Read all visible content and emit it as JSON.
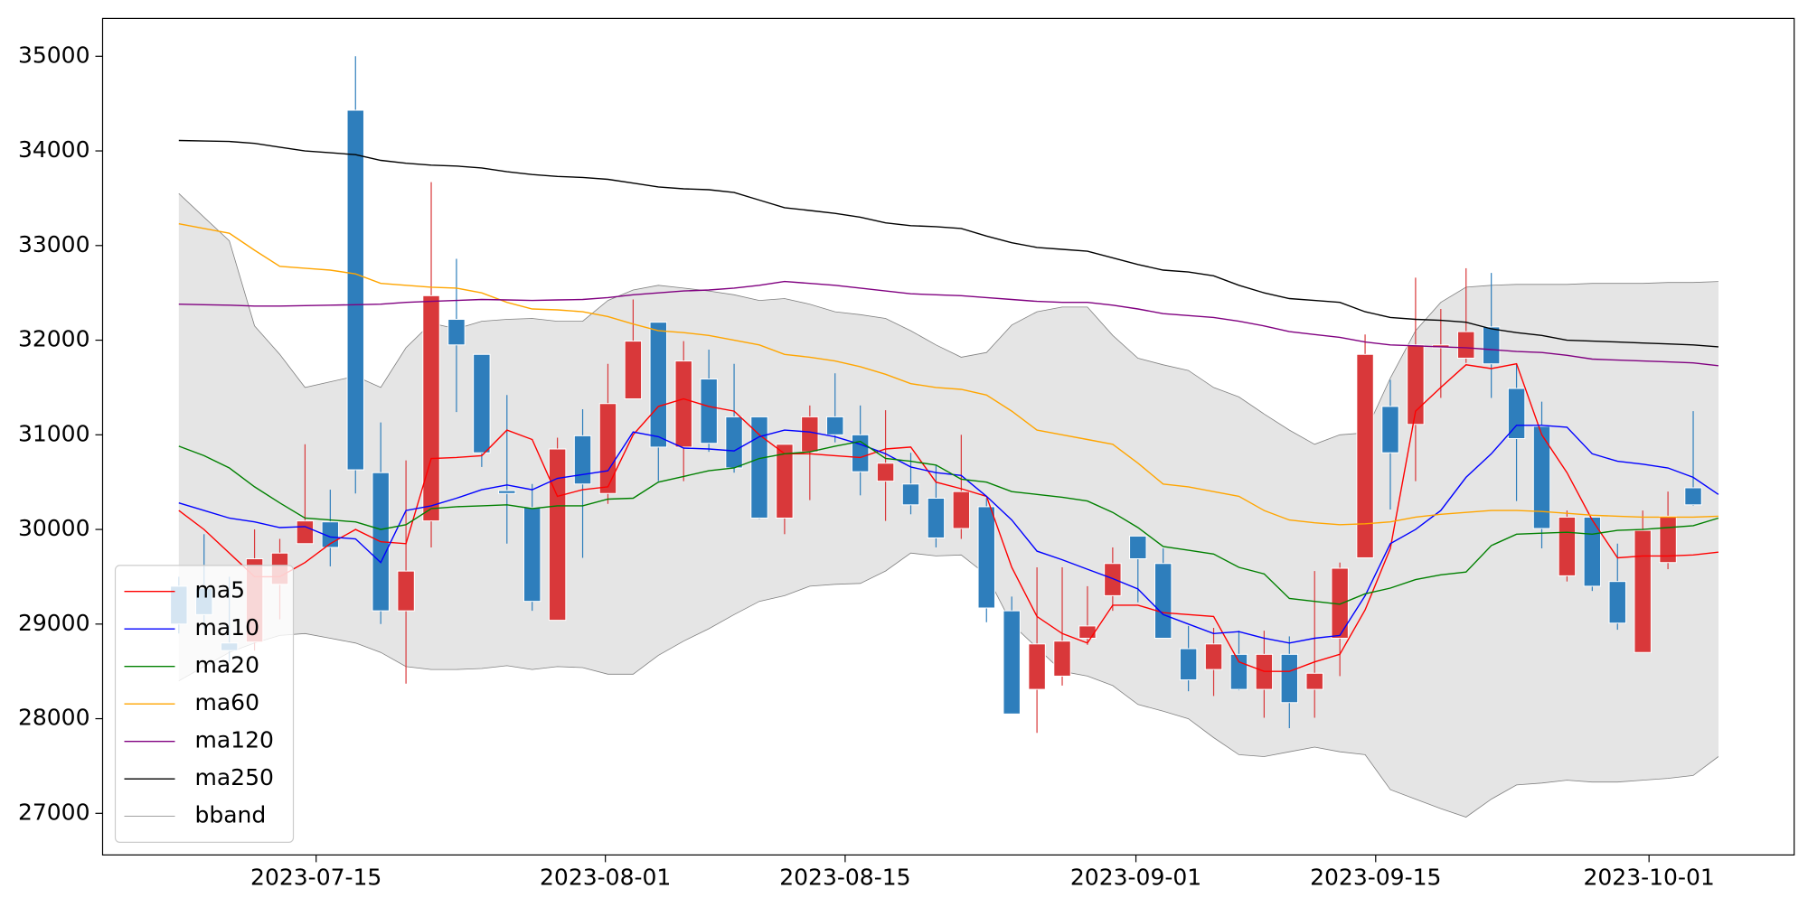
{
  "chart_data": {
    "type": "candlestick",
    "categories": [
      null,
      null,
      null,
      null,
      null,
      null,
      null,
      null,
      null,
      null,
      null,
      null,
      null,
      null,
      null,
      null,
      null,
      null,
      null,
      null,
      null,
      null,
      null,
      null,
      null,
      null,
      null,
      null,
      null,
      null,
      null,
      null,
      null,
      null,
      null,
      null,
      null,
      null,
      null,
      null,
      null,
      null,
      null,
      null,
      null,
      null,
      null,
      null,
      null,
      null,
      null,
      null,
      null,
      null,
      null,
      null,
      null,
      null,
      null,
      null,
      null,
      null
    ],
    "xlim": [
      -3.02,
      64.0
    ],
    "xticks": [
      {
        "value": 5.44,
        "label": "2023-07-15"
      },
      {
        "value": 16.9,
        "label": "2023-08-01"
      },
      {
        "value": 26.4,
        "label": "2023-08-15"
      },
      {
        "value": 37.92,
        "label": "2023-09-01"
      },
      {
        "value": 47.42,
        "label": "2023-09-15"
      },
      {
        "value": 58.25,
        "label": "2023-10-01"
      }
    ],
    "ylim": [
      26560,
      35400
    ],
    "yticks": [
      27000,
      28000,
      29000,
      30000,
      31000,
      32000,
      33000,
      34000,
      35000
    ],
    "up_color": "#d9383a",
    "down_color": "#2e7ebc",
    "open": [
      29400,
      29380,
      28800,
      28810,
      29420,
      29850,
      30080,
      34430,
      30600,
      29140,
      30090,
      32220,
      31850,
      30410,
      30230,
      29040,
      30990,
      30380,
      31380,
      32190,
      30870,
      31590,
      31190,
      31190,
      30120,
      30820,
      31190,
      31000,
      30510,
      30480,
      30330,
      30010,
      30240,
      29140,
      28310,
      28450,
      28850,
      29300,
      29930,
      29640,
      28740,
      28520,
      28680,
      28310,
      28680,
      28310,
      28850,
      29700,
      31300,
      31110,
      31920,
      31810,
      32140,
      31490,
      31090,
      29510,
      30130,
      29450,
      28700,
      29650,
      30440,
      null
    ],
    "high": [
      29500,
      29950,
      29500,
      30000,
      29900,
      30900,
      30420,
      35000,
      31130,
      30730,
      33670,
      32860,
      31850,
      31420,
      30480,
      30970,
      31270,
      31750,
      32430,
      32190,
      31990,
      31900,
      31750,
      31190,
      30900,
      31310,
      31650,
      31310,
      31260,
      30810,
      30680,
      31000,
      30330,
      29290,
      29600,
      29600,
      29400,
      29810,
      29930,
      29800,
      28980,
      28960,
      28930,
      28930,
      28870,
      29560,
      29650,
      32060,
      31580,
      32660,
      32330,
      32760,
      32710,
      31750,
      31350,
      30200,
      30130,
      29850,
      30200,
      30400,
      31250,
      null
    ],
    "low": [
      28900,
      28950,
      28600,
      28720,
      29050,
      29850,
      29610,
      30380,
      29000,
      28370,
      29810,
      31240,
      30660,
      29850,
      29140,
      29040,
      29700,
      30270,
      31380,
      30510,
      30510,
      30820,
      30600,
      30110,
      29950,
      30310,
      30920,
      30360,
      30090,
      30160,
      29810,
      29900,
      29020,
      28050,
      27850,
      28350,
      28780,
      29140,
      29230,
      28850,
      28290,
      28240,
      28300,
      28010,
      27900,
      28010,
      28450,
      29700,
      30210,
      30510,
      31390,
      31760,
      31390,
      30300,
      29800,
      29450,
      29350,
      28940,
      28700,
      29580,
      30250,
      null
    ],
    "close": [
      29000,
      29100,
      28720,
      29690,
      29750,
      30090,
      29810,
      30630,
      29140,
      29560,
      32470,
      31950,
      30810,
      30380,
      29240,
      30850,
      30480,
      31330,
      31990,
      30870,
      31780,
      30910,
      30650,
      30120,
      30900,
      31190,
      31000,
      30610,
      30700,
      30260,
      29910,
      30400,
      29170,
      28050,
      28790,
      28820,
      28980,
      29640,
      29690,
      28850,
      28410,
      28790,
      28310,
      28680,
      28170,
      28480,
      29590,
      31850,
      30810,
      31950,
      31950,
      32090,
      31750,
      30960,
      30010,
      30130,
      29400,
      29010,
      29990,
      30140,
      30260,
      null
    ],
    "series": [
      {
        "name": "ma5",
        "color": "#ff0000",
        "values": [
          30200,
          30000,
          29750,
          29500,
          29500,
          29650,
          29850,
          30000,
          29870,
          29850,
          30750,
          30760,
          30780,
          31050,
          30950,
          30350,
          30420,
          30450,
          31000,
          31300,
          31380,
          31300,
          31250,
          31000,
          30800,
          30800,
          30780,
          30760,
          30850,
          30870,
          30500,
          30430,
          30350,
          29600,
          29080,
          28900,
          28800,
          29200,
          29200,
          29120,
          29100,
          29080,
          28600,
          28500,
          28500,
          28600,
          28680,
          29150,
          29800,
          31250,
          31500,
          31740,
          31700,
          31750,
          31000,
          30600,
          30100,
          29700,
          29720,
          29720,
          29730,
          29760
        ]
      },
      {
        "name": "ma10",
        "color": "#0000ff",
        "values": [
          30280,
          30200,
          30120,
          30080,
          30020,
          30030,
          29920,
          29900,
          29650,
          30200,
          30250,
          30330,
          30420,
          30470,
          30420,
          30540,
          30580,
          30620,
          31030,
          30980,
          30860,
          30850,
          30830,
          30980,
          31050,
          31030,
          30980,
          30900,
          30800,
          30660,
          30600,
          30570,
          30350,
          30100,
          29770,
          29680,
          29580,
          29480,
          29370,
          29100,
          29000,
          28900,
          28920,
          28850,
          28800,
          28850,
          28880,
          29300,
          29850,
          30000,
          30200,
          30550,
          30800,
          31100,
          31100,
          31080,
          30800,
          30720,
          30690,
          30650,
          30550,
          30370
        ]
      },
      {
        "name": "ma20",
        "color": "#008000",
        "values": [
          30880,
          30780,
          30650,
          30450,
          30280,
          30120,
          30100,
          30080,
          30000,
          30050,
          30220,
          30240,
          30250,
          30260,
          30220,
          30250,
          30250,
          30320,
          30330,
          30500,
          30560,
          30620,
          30650,
          30750,
          30800,
          30820,
          30880,
          30930,
          30750,
          30720,
          30680,
          30530,
          30500,
          30400,
          30370,
          30340,
          30300,
          30180,
          30020,
          29820,
          29780,
          29740,
          29600,
          29530,
          29270,
          29240,
          29210,
          29320,
          29380,
          29470,
          29520,
          29550,
          29830,
          29950,
          29960,
          29970,
          29950,
          29990,
          30000,
          30020,
          30040,
          30120
        ]
      },
      {
        "name": "ma60",
        "color": "#ffa500",
        "values": [
          33230,
          33180,
          33130,
          32950,
          32780,
          32760,
          32740,
          32700,
          32600,
          32580,
          32560,
          32550,
          32500,
          32400,
          32330,
          32320,
          32300,
          32250,
          32170,
          32100,
          32080,
          32050,
          32000,
          31950,
          31850,
          31820,
          31780,
          31720,
          31640,
          31540,
          31500,
          31480,
          31420,
          31250,
          31050,
          31000,
          30950,
          30900,
          30700,
          30480,
          30450,
          30400,
          30350,
          30200,
          30100,
          30070,
          30050,
          30060,
          30080,
          30130,
          30160,
          30180,
          30200,
          30200,
          30190,
          30170,
          30150,
          30140,
          30130,
          30130,
          30130,
          30140
        ]
      },
      {
        "name": "ma120",
        "color": "#800080",
        "values": [
          32380,
          32375,
          32370,
          32360,
          32360,
          32365,
          32370,
          32375,
          32380,
          32400,
          32410,
          32420,
          32430,
          32425,
          32420,
          32425,
          32430,
          32450,
          32480,
          32500,
          32520,
          32530,
          32550,
          32580,
          32620,
          32600,
          32580,
          32550,
          32520,
          32490,
          32480,
          32470,
          32450,
          32430,
          32410,
          32400,
          32400,
          32370,
          32330,
          32280,
          32260,
          32240,
          32200,
          32150,
          32090,
          32060,
          32030,
          31980,
          31950,
          31940,
          31930,
          31920,
          31900,
          31880,
          31870,
          31840,
          31800,
          31790,
          31780,
          31770,
          31760,
          31730
        ]
      },
      {
        "name": "ma250",
        "color": "#000000",
        "values": [
          34110,
          34105,
          34100,
          34080,
          34040,
          34000,
          33980,
          33960,
          33900,
          33870,
          33850,
          33840,
          33820,
          33780,
          33750,
          33730,
          33720,
          33700,
          33660,
          33620,
          33600,
          33590,
          33560,
          33480,
          33400,
          33370,
          33340,
          33300,
          33240,
          33210,
          33200,
          33180,
          33100,
          33030,
          32980,
          32960,
          32940,
          32870,
          32800,
          32740,
          32720,
          32680,
          32580,
          32500,
          32440,
          32420,
          32400,
          32300,
          32240,
          32220,
          32210,
          32190,
          32120,
          32080,
          32050,
          32000,
          31990,
          31980,
          31970,
          31960,
          31950,
          31930
        ]
      }
    ],
    "band": {
      "name": "bband",
      "color": "#808080",
      "fill": "#e5e5e5",
      "upper": [
        33550,
        33300,
        33050,
        32150,
        31850,
        31500,
        31560,
        31620,
        31500,
        31920,
        32180,
        32120,
        32200,
        32220,
        32230,
        32200,
        32200,
        32420,
        32530,
        32580,
        32550,
        32520,
        32480,
        32420,
        32440,
        32380,
        32300,
        32270,
        32230,
        32100,
        31950,
        31820,
        31870,
        32160,
        32300,
        32350,
        32350,
        32050,
        31810,
        31740,
        31680,
        31500,
        31400,
        31220,
        31050,
        30900,
        31000,
        31020,
        31600,
        32100,
        32400,
        32560,
        32580,
        32590,
        32590,
        32590,
        32600,
        32600,
        32600,
        32610,
        32610,
        32620
      ],
      "lower": [
        28400,
        28550,
        28700,
        28800,
        28880,
        28900,
        28850,
        28800,
        28700,
        28550,
        28520,
        28520,
        28530,
        28560,
        28520,
        28550,
        28540,
        28470,
        28470,
        28670,
        28820,
        28950,
        29100,
        29240,
        29300,
        29400,
        29420,
        29430,
        29560,
        29750,
        29720,
        29730,
        29520,
        29000,
        28750,
        28500,
        28450,
        28350,
        28150,
        28080,
        28000,
        27800,
        27620,
        27600,
        27650,
        27700,
        27650,
        27620,
        27250,
        27150,
        27050,
        26960,
        27150,
        27300,
        27320,
        27350,
        27330,
        27330,
        27350,
        27370,
        27400,
        27600
      ]
    },
    "legend": "lower left"
  }
}
